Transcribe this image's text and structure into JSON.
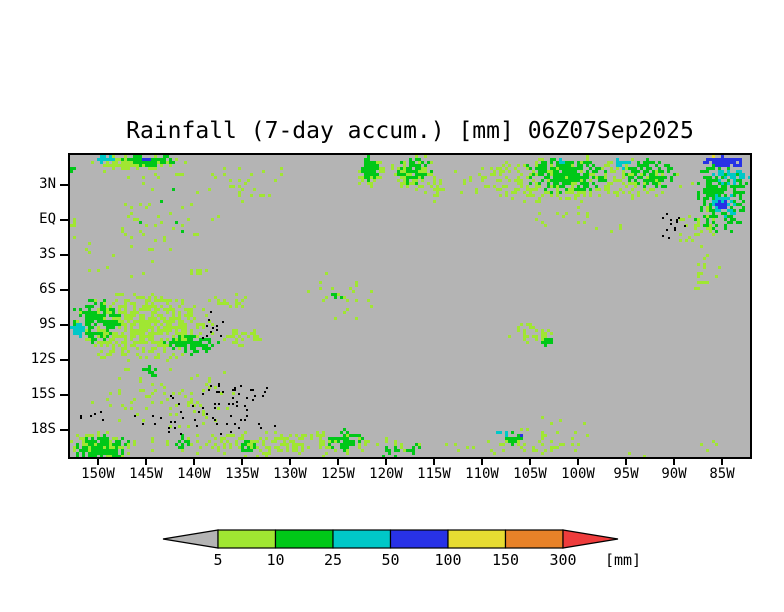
{
  "palette": {
    "gray": "#b4b4b4",
    "lightgreen": "#a0e632",
    "green": "#00c818",
    "cyan": "#00c8c8",
    "blue": "#2832e6",
    "yellow": "#e6dc32",
    "orange": "#e88228",
    "red": "#ee3c3c",
    "black": "#000000"
  },
  "chart_data": {
    "type": "heatmap",
    "title": "Rainfall (7-day accum.) [mm] 06Z07Sep2025",
    "field": "7-day accumulated rainfall",
    "units": "mm",
    "background_meaning": "less than 5 mm (gray)",
    "geo_domain": {
      "lon_west_deg": 152.9,
      "lon_east_deg": 82.5,
      "lat_north_deg": 5.6,
      "lat_south_deg": -20.1
    },
    "x_axis": {
      "ticks": [
        {
          "label": "150W",
          "lon": 150
        },
        {
          "label": "145W",
          "lon": 145
        },
        {
          "label": "140W",
          "lon": 140
        },
        {
          "label": "135W",
          "lon": 135
        },
        {
          "label": "130W",
          "lon": 130
        },
        {
          "label": "125W",
          "lon": 125
        },
        {
          "label": "120W",
          "lon": 120
        },
        {
          "label": "115W",
          "lon": 115
        },
        {
          "label": "110W",
          "lon": 110
        },
        {
          "label": "105W",
          "lon": 105
        },
        {
          "label": "100W",
          "lon": 100
        },
        {
          "label": "95W",
          "lon": 95
        },
        {
          "label": "90W",
          "lon": 90
        },
        {
          "label": "85W",
          "lon": 85
        }
      ]
    },
    "y_axis": {
      "ticks": [
        {
          "label": "3N",
          "lat": 3
        },
        {
          "label": "EQ",
          "lat": 0
        },
        {
          "label": "3S",
          "lat": -3
        },
        {
          "label": "6S",
          "lat": -6
        },
        {
          "label": "9S",
          "lat": -9
        },
        {
          "label": "12S",
          "lat": -12
        },
        {
          "label": "15S",
          "lat": -15
        },
        {
          "label": "18S",
          "lat": -18
        }
      ]
    },
    "colorbar": {
      "unit_label": "[mm]",
      "thresholds": [
        "5",
        "10",
        "25",
        "50",
        "100",
        "150",
        "300"
      ],
      "band_levels": [
        "lightgreen",
        "green",
        "cyan",
        "blue",
        "yellow",
        "orange"
      ],
      "underflow_level": "gray",
      "overflow_level": "red"
    },
    "rain_patches": [
      {
        "level": "lightgreen",
        "lon": 145.9,
        "lat": 4.97,
        "w": 10.9,
        "h": 1.4,
        "density": 0.75
      },
      {
        "level": "green",
        "lon": 144.8,
        "lat": 5.2,
        "w": 6.2,
        "h": 1.0,
        "density": 0.8
      },
      {
        "level": "cyan",
        "lon": 149.3,
        "lat": 5.3,
        "w": 2.3,
        "h": 0.8,
        "density": 0.9
      },
      {
        "level": "blue",
        "lon": 145.0,
        "lat": 5.35,
        "w": 1.5,
        "h": 0.6,
        "density": 0.9
      },
      {
        "level": "lightgreen",
        "lon": 145.1,
        "lat": 3.8,
        "w": 13.5,
        "h": 1.5,
        "density": 0.08
      },
      {
        "level": "lightgreen",
        "lon": 148.2,
        "lat": -3.0,
        "w": 9.4,
        "h": 6.0,
        "density": 0.06
      },
      {
        "level": "lightgreen",
        "lon": 143.0,
        "lat": 0.4,
        "w": 12.5,
        "h": 6.9,
        "density": 0.07
      },
      {
        "level": "green",
        "lon": 143.5,
        "lat": 1.0,
        "w": 8.0,
        "h": 5.0,
        "density": 0.02
      },
      {
        "level": "lightgreen",
        "lon": 134.2,
        "lat": 3.4,
        "w": 9.4,
        "h": 4.3,
        "density": 0.09
      },
      {
        "level": "lightgreen",
        "lon": 121.9,
        "lat": 4.3,
        "w": 3.2,
        "h": 3.1,
        "density": 0.5
      },
      {
        "level": "green",
        "lon": 121.9,
        "lat": 4.5,
        "w": 2.1,
        "h": 2.4,
        "density": 0.85
      },
      {
        "level": "lightgreen",
        "lon": 117.3,
        "lat": 4.2,
        "w": 5.2,
        "h": 3.4,
        "density": 0.5
      },
      {
        "level": "green",
        "lon": 117.3,
        "lat": 4.4,
        "w": 4.1,
        "h": 2.9,
        "density": 0.6
      },
      {
        "level": "lightgreen",
        "lon": 115.2,
        "lat": 2.7,
        "w": 3.1,
        "h": 2.6,
        "density": 0.3
      },
      {
        "level": "lightgreen",
        "lon": 100.8,
        "lat": 3.5,
        "w": 27.0,
        "h": 4.3,
        "density": 0.35
      },
      {
        "level": "green",
        "lon": 101.4,
        "lat": 4.0,
        "w": 9.4,
        "h": 3.3,
        "density": 0.65
      },
      {
        "level": "green",
        "lon": 92.5,
        "lat": 4.1,
        "w": 6.3,
        "h": 2.9,
        "density": 0.5
      },
      {
        "level": "cyan",
        "lon": 95.6,
        "lat": 4.9,
        "w": 2.1,
        "h": 1.0,
        "density": 0.6
      },
      {
        "level": "cyan",
        "lon": 101.9,
        "lat": 5.1,
        "w": 1.5,
        "h": 0.7,
        "density": 0.6
      },
      {
        "level": "lightgreen",
        "lon": 100.0,
        "lat": 0.4,
        "w": 16.7,
        "h": 3.4,
        "density": 0.05
      },
      {
        "level": "green",
        "lon": 85.3,
        "lat": 2.1,
        "w": 6.5,
        "h": 6.9,
        "density": 0.55
      },
      {
        "level": "blue",
        "lon": 84.7,
        "lat": 5.15,
        "w": 5.2,
        "h": 1.0,
        "density": 0.85
      },
      {
        "level": "cyan",
        "lon": 84.2,
        "lat": 3.8,
        "w": 4.2,
        "h": 1.5,
        "density": 0.55
      },
      {
        "level": "cyan",
        "lon": 85.0,
        "lat": 1.45,
        "w": 3.5,
        "h": 2.2,
        "density": 0.5
      },
      {
        "level": "blue",
        "lon": 85.2,
        "lat": 1.4,
        "w": 1.7,
        "h": 1.0,
        "density": 0.9
      },
      {
        "level": "lightgreen",
        "lon": 87.8,
        "lat": -0.4,
        "w": 5.2,
        "h": 4.3,
        "density": 0.25
      },
      {
        "level": "lightgreen",
        "lon": 86.9,
        "lat": -4.3,
        "w": 3.6,
        "h": 4.0,
        "density": 0.12
      },
      {
        "level": "yellow",
        "lon": 86.0,
        "lat": 5.5,
        "w": 0.7,
        "h": 0.35,
        "density": 1.0
      },
      {
        "level": "lightgreen",
        "lon": 145.5,
        "lat": -9.1,
        "w": 15.6,
        "h": 6.6,
        "density": 0.55
      },
      {
        "level": "green",
        "lon": 150.3,
        "lat": -8.6,
        "w": 5.7,
        "h": 4.3,
        "density": 0.5
      },
      {
        "level": "green",
        "lon": 140.4,
        "lat": -10.5,
        "w": 6.3,
        "h": 1.9,
        "density": 0.7
      },
      {
        "level": "cyan",
        "lon": 152.0,
        "lat": -9.25,
        "w": 2.1,
        "h": 1.5,
        "density": 0.85
      },
      {
        "level": "lightgreen",
        "lon": 135.2,
        "lat": -9.9,
        "w": 4.2,
        "h": 1.7,
        "density": 0.35
      },
      {
        "level": "lightgreen",
        "lon": 136.5,
        "lat": -6.9,
        "w": 4.7,
        "h": 1.6,
        "density": 0.4
      },
      {
        "level": "lightgreen",
        "lon": 143.5,
        "lat": -15.0,
        "w": 18.8,
        "h": 6.0,
        "density": 0.1
      },
      {
        "level": "green",
        "lon": 144.8,
        "lat": -12.9,
        "w": 2.3,
        "h": 1.2,
        "density": 0.6
      },
      {
        "level": "green",
        "lon": 149.8,
        "lat": -19.5,
        "w": 6.8,
        "h": 2.4,
        "density": 0.65
      },
      {
        "level": "lightgreen",
        "lon": 149.8,
        "lat": -19.3,
        "w": 8.3,
        "h": 2.8,
        "density": 0.5
      },
      {
        "level": "lightgreen",
        "lon": 131.0,
        "lat": -19.1,
        "w": 31.0,
        "h": 2.6,
        "density": 0.3
      },
      {
        "level": "green",
        "lon": 141.5,
        "lat": -18.9,
        "w": 2.1,
        "h": 1.5,
        "density": 0.5
      },
      {
        "level": "green",
        "lon": 134.7,
        "lat": -19.3,
        "w": 2.3,
        "h": 1.2,
        "density": 0.5
      },
      {
        "level": "green",
        "lon": 124.3,
        "lat": -18.9,
        "w": 4.2,
        "h": 2.6,
        "density": 0.55
      },
      {
        "level": "green",
        "lon": 119.6,
        "lat": -19.7,
        "w": 3.1,
        "h": 1.2,
        "density": 0.5
      },
      {
        "level": "green",
        "lon": 117.3,
        "lat": -19.5,
        "w": 1.9,
        "h": 1.0,
        "density": 0.5
      },
      {
        "level": "lightgreen",
        "lon": 108.1,
        "lat": -19.5,
        "w": 14.6,
        "h": 1.5,
        "density": 0.15
      },
      {
        "level": "lightgreen",
        "lon": 101.4,
        "lat": -19.2,
        "w": 3.1,
        "h": 0.9,
        "density": 0.3
      },
      {
        "level": "lightgreen",
        "lon": 94.1,
        "lat": -19.7,
        "w": 8.3,
        "h": 1.0,
        "density": 0.08
      },
      {
        "level": "lightgreen",
        "lon": 86.6,
        "lat": -19.2,
        "w": 3.1,
        "h": 1.2,
        "density": 0.2
      },
      {
        "level": "lightgreen",
        "lon": 139.9,
        "lat": -4.4,
        "w": 3.1,
        "h": 0.7,
        "density": 0.5
      },
      {
        "level": "lightgreen",
        "lon": 124.8,
        "lat": -6.4,
        "w": 9.4,
        "h": 5.1,
        "density": 0.08
      },
      {
        "level": "green",
        "lon": 125.3,
        "lat": -6.6,
        "w": 2.1,
        "h": 0.9,
        "density": 0.3
      },
      {
        "level": "lightgreen",
        "lon": 105.0,
        "lat": -9.7,
        "w": 5.7,
        "h": 2.1,
        "density": 0.3
      },
      {
        "level": "green",
        "lon": 103.4,
        "lat": -10.3,
        "w": 1.7,
        "h": 0.9,
        "density": 0.7
      },
      {
        "level": "lightgreen",
        "lon": 102.9,
        "lat": -18.2,
        "w": 12.0,
        "h": 3.9,
        "density": 0.08
      },
      {
        "level": "green",
        "lon": 107.1,
        "lat": -18.7,
        "w": 2.6,
        "h": 1.3,
        "density": 0.3
      },
      {
        "level": "cyan",
        "lon": 108.1,
        "lat": -18.3,
        "w": 1.3,
        "h": 0.9,
        "density": 0.5
      },
      {
        "level": "blue",
        "lon": 105.9,
        "lat": -18.2,
        "w": 0.5,
        "h": 0.45,
        "density": 0.9
      },
      {
        "level": "lightgreen",
        "lon": 152.7,
        "lat": -0.2,
        "w": 0.9,
        "h": 2.6,
        "density": 0.5
      },
      {
        "level": "green",
        "lon": 152.7,
        "lat": 4.5,
        "w": 0.6,
        "h": 0.7,
        "density": 0.8
      }
    ],
    "island_outlines": [
      {
        "name": "galapagos",
        "lon": 90.4,
        "lat": -0.4,
        "w": 3.8,
        "h": 2.6,
        "density": 0.1
      },
      {
        "name": "marquesas",
        "lon": 138.3,
        "lat": -9.2,
        "w": 3.1,
        "h": 3.0,
        "density": 0.07
      },
      {
        "name": "tuamotu",
        "lon": 139.4,
        "lat": -16.7,
        "w": 18.8,
        "h": 4.7,
        "density": 0.04
      },
      {
        "name": "tuamotu-north",
        "lon": 136.3,
        "lat": -14.6,
        "w": 9.4,
        "h": 3.4,
        "density": 0.05
      },
      {
        "name": "society",
        "lon": 150.8,
        "lat": -16.5,
        "w": 4.2,
        "h": 1.7,
        "density": 0.06
      }
    ]
  }
}
